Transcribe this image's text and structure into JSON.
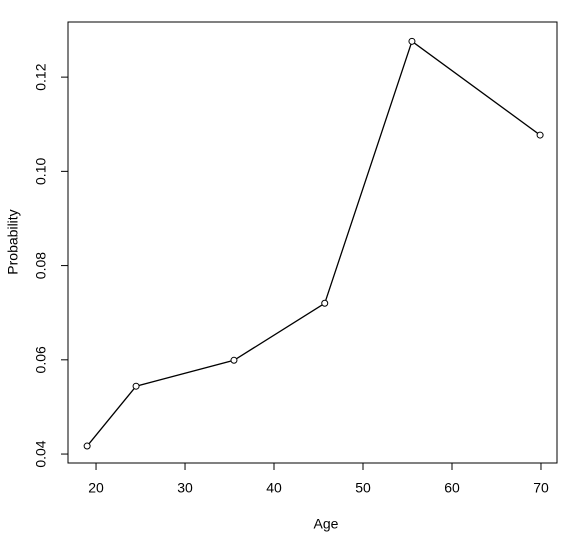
{
  "chart_data": {
    "type": "line",
    "x_label": "Age",
    "y_label": "Probability",
    "x": [
      19,
      24.5,
      35.5,
      45.7,
      55.5,
      69.9
    ],
    "series": [
      {
        "color": "#000000",
        "values": [
          0.0417,
          0.0544,
          0.0599,
          0.072,
          0.1276,
          0.1077
        ]
      }
    ],
    "xlim": [
      16.85,
      71.8
    ],
    "xticks": [
      20,
      30,
      40,
      50,
      60,
      70
    ],
    "ylim": [
      0.0381,
      0.1317
    ],
    "yticks": [
      0.04,
      0.06,
      0.08,
      {
        "value": 0.1,
        "label": "0.10"
      },
      0.12
    ],
    "markers": true
  }
}
